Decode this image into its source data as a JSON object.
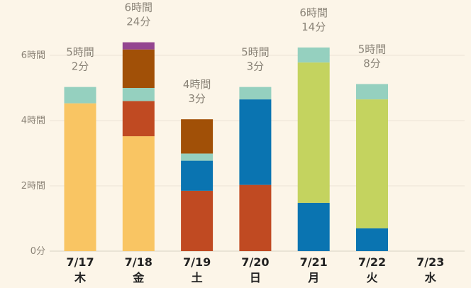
{
  "chart_data": {
    "type": "bar",
    "stacked": true,
    "y_unit": "hours",
    "ylim": [
      0,
      6.9
    ],
    "y_ticks": [
      {
        "value": 0,
        "label": "0分"
      },
      {
        "value": 2,
        "label": "2時間"
      },
      {
        "value": 4,
        "label": "4時間"
      },
      {
        "value": 6,
        "label": "6時間"
      }
    ],
    "categories": [
      {
        "date": "7/17",
        "day": "木",
        "total_line1": "5時間",
        "total_line2": "2分"
      },
      {
        "date": "7/18",
        "day": "金",
        "total_line1": "6時間",
        "total_line2": "24分"
      },
      {
        "date": "7/19",
        "day": "土",
        "total_line1": "4時間",
        "total_line2": "3分"
      },
      {
        "date": "7/20",
        "day": "日",
        "total_line1": "5時間",
        "total_line2": "3分"
      },
      {
        "date": "7/21",
        "day": "月",
        "total_line1": "6時間",
        "total_line2": "14分"
      },
      {
        "date": "7/22",
        "day": "火",
        "total_line1": "5時間",
        "total_line2": "8分"
      },
      {
        "date": "7/23",
        "day": "水",
        "total_line1": "",
        "total_line2": ""
      }
    ],
    "series": [
      {
        "color": "#f9c563",
        "values": [
          4.53,
          3.52,
          0,
          0,
          0,
          0,
          0
        ]
      },
      {
        "color": "#c04a22",
        "values": [
          0,
          1.08,
          1.85,
          2.03,
          0,
          0,
          0
        ]
      },
      {
        "color": "#0a74b1",
        "values": [
          0,
          0,
          0.92,
          2.62,
          1.48,
          0.7,
          0
        ]
      },
      {
        "color": "#c4d35f",
        "values": [
          0,
          0,
          0,
          0,
          4.3,
          3.95,
          0
        ]
      },
      {
        "color": "#95d0bf",
        "values": [
          0.5,
          0.4,
          0.22,
          0.38,
          0.46,
          0.47,
          0
        ]
      },
      {
        "color": "#a15007",
        "values": [
          0,
          1.18,
          1.05,
          0,
          0,
          0,
          0
        ]
      },
      {
        "color": "#944590",
        "values": [
          0,
          0.22,
          0,
          0,
          0,
          0,
          0
        ]
      }
    ],
    "grid": true,
    "legend": "none"
  }
}
